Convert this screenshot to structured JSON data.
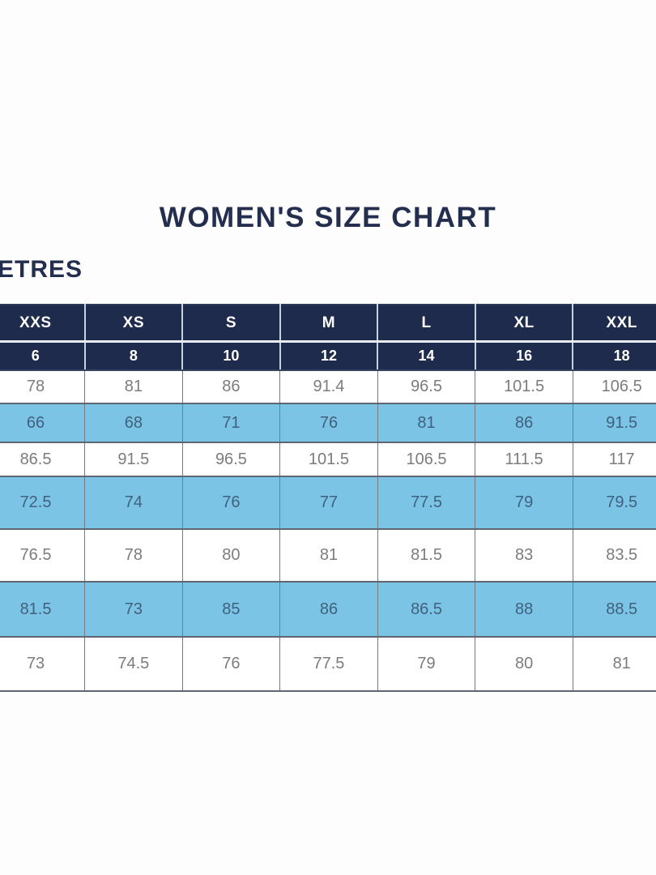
{
  "page": {
    "title": "WOMEN'S SIZE CHART",
    "units_fragment": "ETRES"
  },
  "colors": {
    "navy": "#1e2b4d",
    "light_blue": "#7cc4e6",
    "title_text": "#242f4f",
    "white_row_text": "#7b7c80",
    "blue_row_text": "#40617d",
    "header_text": "#ffffff"
  },
  "chart_data": {
    "type": "table",
    "title": "WOMEN'S SIZE CHART",
    "columns_size_labels": [
      "XXS",
      "XS",
      "S",
      "M",
      "L",
      "XL",
      "XXL"
    ],
    "columns_size_numbers": [
      "6",
      "8",
      "10",
      "12",
      "14",
      "16",
      "18"
    ],
    "rows": [
      {
        "shade": "white",
        "values": [
          "78",
          "81",
          "86",
          "91.4",
          "96.5",
          "101.5",
          "106.5"
        ]
      },
      {
        "shade": "blue",
        "values": [
          "66",
          "68",
          "71",
          "76",
          "81",
          "86",
          "91.5"
        ]
      },
      {
        "shade": "white",
        "values": [
          "86.5",
          "91.5",
          "96.5",
          "101.5",
          "106.5",
          "111.5",
          "117"
        ]
      },
      {
        "shade": "blue",
        "values": [
          "72.5",
          "74",
          "76",
          "77",
          "77.5",
          "79",
          "79.5"
        ]
      },
      {
        "shade": "white",
        "values": [
          "76.5",
          "78",
          "80",
          "81",
          "81.5",
          "83",
          "83.5"
        ]
      },
      {
        "shade": "blue",
        "values": [
          "81.5",
          "73",
          "85",
          "86",
          "86.5",
          "88",
          "88.5"
        ]
      },
      {
        "shade": "white",
        "values": [
          "73",
          "74.5",
          "76",
          "77.5",
          "79",
          "80",
          "81"
        ]
      }
    ]
  }
}
